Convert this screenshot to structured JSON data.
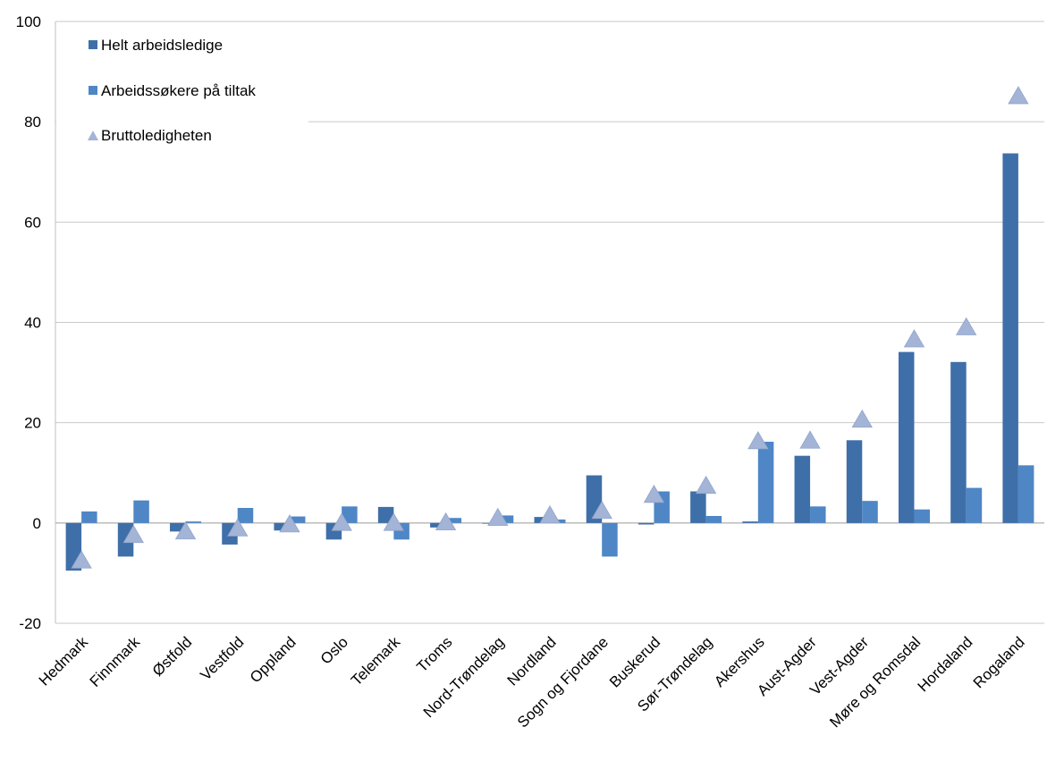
{
  "chart_data": {
    "type": "bar",
    "categories": [
      "Hedmark",
      "Finnmark",
      "Østfold",
      "Vestfold",
      "Oppland",
      "Oslo",
      "Telemark",
      "Troms",
      "Nord-Trøndelag",
      "Nordland",
      "Sogn og Fjordane",
      "Buskerud",
      "Sør-Trøndelag",
      "Akershus",
      "Aust-Agder",
      "Vest-Agder",
      "Møre og Romsdal",
      "Hordaland",
      "Rogaland"
    ],
    "series": [
      {
        "name": "Helt arbeidsledige",
        "kind": "bar",
        "color": "#3f6fa8",
        "values": [
          -9.5,
          -6.7,
          -1.7,
          -4.3,
          -1.5,
          -3.3,
          3.2,
          -0.9,
          0.0,
          1.2,
          9.5,
          -0.3,
          6.3,
          0.3,
          13.4,
          16.5,
          34.1,
          32.1,
          73.7
        ]
      },
      {
        "name": "Arbeidssøkere på tiltak",
        "kind": "bar",
        "color": "#4f86c6",
        "values": [
          2.3,
          4.5,
          0.3,
          3.0,
          1.3,
          3.3,
          -3.3,
          1.0,
          1.5,
          0.7,
          -6.7,
          6.3,
          1.4,
          16.2,
          3.3,
          4.4,
          2.7,
          7.0,
          11.5
        ]
      },
      {
        "name": "Bruttoledigheten",
        "kind": "marker",
        "color": "#a3b4d6",
        "values": [
          -7.3,
          -2.2,
          -1.5,
          -0.9,
          -0.1,
          0.2,
          0.2,
          0.3,
          1.2,
          1.7,
          2.6,
          5.8,
          7.6,
          16.5,
          16.6,
          20.8,
          36.8,
          39.2,
          85.3
        ]
      }
    ],
    "yticks": [
      -20,
      0,
      20,
      40,
      60,
      80,
      100
    ],
    "ylim": [
      -20,
      100
    ],
    "grid": true,
    "legend_position": "top-left",
    "title": "",
    "xlabel": "",
    "ylabel": ""
  }
}
